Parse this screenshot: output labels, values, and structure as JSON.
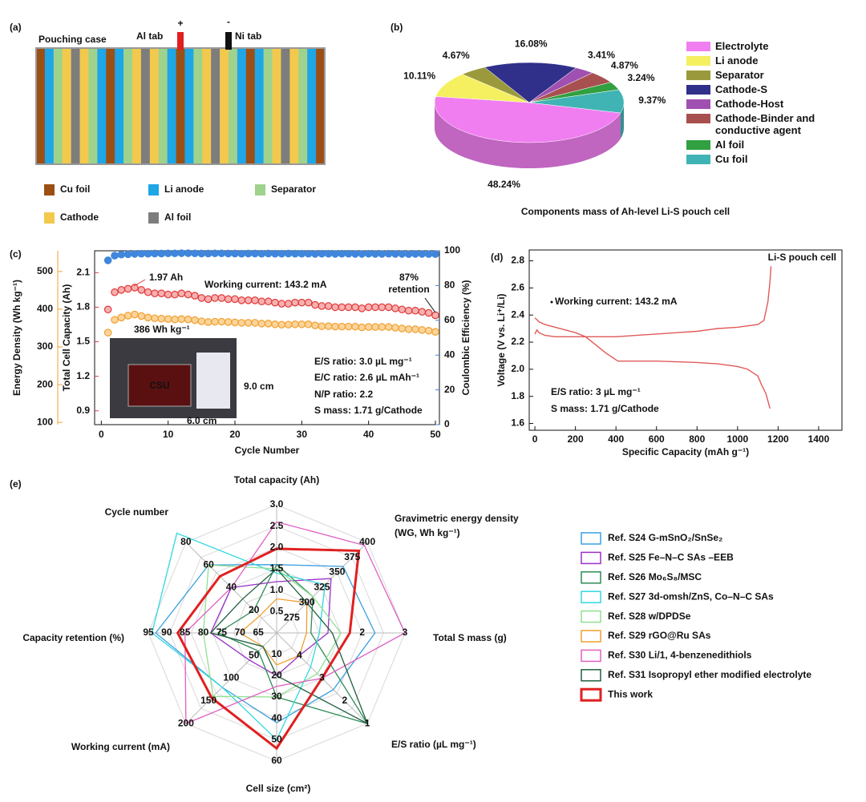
{
  "panel_a": {
    "label": "(a)",
    "case_label": "Pouching case",
    "al_tab": "Al tab",
    "al_sign": "+",
    "ni_tab": "Ni tab",
    "ni_sign": "-",
    "legend": [
      {
        "name": "Cu foil",
        "color": "#9c4f14"
      },
      {
        "name": "Li anode",
        "color": "#1ea6e6"
      },
      {
        "name": "Separator",
        "color": "#9fd28c"
      },
      {
        "name": "Cathode",
        "color": "#f2c94c"
      },
      {
        "name": "Al foil",
        "color": "#7d7d7d"
      }
    ]
  },
  "chart_data": [
    {
      "type": "pie",
      "panel_label": "(b)",
      "title": "Components mass of Ah-level Li-S pouch cell",
      "categories": [
        "Electrolyte",
        "Li anode",
        "Separator",
        "Cathode-S",
        "Cathode-Host",
        "Cathode-Binder and conductive agent",
        "Al foil",
        "Cu foil"
      ],
      "values": [
        48.24,
        10.11,
        4.67,
        16.08,
        3.41,
        4.87,
        3.24,
        9.37
      ],
      "value_labels": [
        "48.24%",
        "10.11%",
        "4.67%",
        "16.08%",
        "3.41%",
        "4.87%",
        "3.24%",
        "9.37%"
      ],
      "colors": [
        "#f07ef0",
        "#f4f060",
        "#9a9a3c",
        "#30308a",
        "#a050b0",
        "#a85050",
        "#30a040",
        "#40b4b4"
      ]
    },
    {
      "type": "scatter",
      "panel_label": "(c)",
      "xlabel": "Cycle Number",
      "x": [
        1,
        2,
        3,
        4,
        5,
        6,
        7,
        8,
        9,
        10,
        11,
        12,
        13,
        14,
        15,
        16,
        17,
        18,
        19,
        20,
        21,
        22,
        23,
        24,
        25,
        26,
        27,
        28,
        29,
        30,
        31,
        32,
        33,
        34,
        35,
        36,
        37,
        38,
        39,
        40,
        41,
        42,
        43,
        44,
        45,
        46,
        47,
        48,
        49,
        50
      ],
      "xlim": [
        -1,
        50.6
      ],
      "xticks": [
        0,
        10,
        20,
        30,
        40,
        50
      ],
      "ylabel": "Total Cell Capacity (Ah)",
      "ylim": [
        0.78,
        2.29
      ],
      "yticks": [
        0.9,
        1.2,
        1.5,
        1.8,
        2.1
      ],
      "y2label": "Coulombic Efficiency (%)",
      "y2lim": [
        0,
        100
      ],
      "y2ticks": [
        0,
        20,
        40,
        60,
        80,
        100
      ],
      "y3label": "Energy Density (Wh kg⁻¹)",
      "y3lim": [
        94,
        555
      ],
      "y3ticks": [
        100,
        200,
        300,
        400,
        500
      ],
      "series": [
        {
          "axis": "y",
          "color": "#e03a3a",
          "values": [
            1.78,
            1.93,
            1.95,
            1.96,
            1.97,
            1.95,
            1.93,
            1.92,
            1.92,
            1.91,
            1.91,
            1.92,
            1.91,
            1.9,
            1.88,
            1.87,
            1.88,
            1.88,
            1.87,
            1.87,
            1.86,
            1.86,
            1.86,
            1.85,
            1.85,
            1.84,
            1.83,
            1.83,
            1.84,
            1.84,
            1.84,
            1.82,
            1.81,
            1.81,
            1.8,
            1.8,
            1.8,
            1.8,
            1.79,
            1.8,
            1.8,
            1.8,
            1.8,
            1.79,
            1.78,
            1.77,
            1.77,
            1.76,
            1.75,
            1.73
          ]
        },
        {
          "axis": "y3",
          "color": "#f0a030",
          "values": [
            338,
            372,
            378,
            383,
            386,
            382,
            378,
            376,
            375,
            374,
            373,
            374,
            373,
            371,
            368,
            366,
            367,
            367,
            366,
            365,
            364,
            364,
            364,
            362,
            362,
            360,
            359,
            359,
            360,
            360,
            360,
            357,
            355,
            355,
            354,
            354,
            354,
            354,
            352,
            353,
            353,
            353,
            353,
            351,
            349,
            347,
            347,
            345,
            343,
            340
          ]
        },
        {
          "axis": "y2",
          "color": "#3f86dc",
          "values": [
            94.5,
            97.2,
            97.8,
            98,
            98.2,
            98.3,
            98.3,
            98.4,
            98.4,
            98.5,
            98.5,
            98.6,
            98.6,
            98.5,
            98.4,
            98.4,
            98.5,
            98.5,
            98.4,
            98.4,
            98.3,
            98.4,
            98.4,
            98.3,
            98.4,
            98.3,
            98.3,
            98.4,
            98.3,
            98.3,
            98.3,
            98.2,
            98.3,
            98.3,
            98.2,
            98.3,
            98.3,
            98.2,
            98.2,
            98.3,
            98.2,
            98.2,
            98.3,
            98.2,
            98.2,
            98.1,
            98.2,
            98.2,
            98.1,
            98.1
          ]
        }
      ],
      "annotations": [
        "1.97 Ah",
        "386 Wh kg⁻¹",
        "Working current: 143.2 mA",
        "87%",
        "retention",
        "E/S ratio: 3.0 µL mg⁻¹",
        "E/C ratio: 2.6 µL mAh⁻¹",
        "N/P ratio: 2.2",
        "S mass: 1.71 g/Cathode"
      ],
      "inset": {
        "photo_text": "CSU",
        "height": "9.0 cm",
        "width": "6.0 cm"
      }
    },
    {
      "type": "line",
      "panel_label": "(d)",
      "xlabel": "Specific Capacity (mAh g⁻¹)",
      "ylabel": "Voltage (V vs. Li⁺/Li)",
      "xlim": [
        -28,
        1515
      ],
      "xticks": [
        0,
        200,
        400,
        600,
        800,
        1000,
        1200,
        1400
      ],
      "ylim": [
        1.55,
        2.88
      ],
      "yticks": [
        1.6,
        1.8,
        {
          "value": 2,
          "label": "2.0"
        },
        2.2,
        2.4,
        2.6,
        2.8
      ],
      "series": [
        {
          "color": "#e05a5a",
          "x": [
            0,
            20,
            50,
            100,
            150,
            200,
            250,
            300,
            350,
            400,
            410,
            450,
            500,
            600,
            700,
            800,
            900,
            1000,
            1050,
            1100,
            1120,
            1140,
            1160
          ],
          "values": [
            2.38,
            2.35,
            2.33,
            2.31,
            2.29,
            2.27,
            2.24,
            2.18,
            2.12,
            2.07,
            2.06,
            2.06,
            2.06,
            2.06,
            2.055,
            2.05,
            2.04,
            2.02,
            2,
            1.95,
            1.88,
            1.82,
            1.71
          ]
        },
        {
          "color": "#e05a5a",
          "x": [
            0,
            10,
            20,
            50,
            100,
            200,
            300,
            400,
            500,
            600,
            700,
            800,
            900,
            1000,
            1050,
            1100,
            1130,
            1150,
            1160,
            1165
          ],
          "values": [
            2.26,
            2.29,
            2.27,
            2.25,
            2.24,
            2.24,
            2.24,
            2.24,
            2.25,
            2.26,
            2.27,
            2.28,
            2.3,
            2.31,
            2.32,
            2.33,
            2.36,
            2.5,
            2.65,
            2.76
          ]
        }
      ],
      "annotations": [
        "Li-S pouch cell",
        "Working current: 143.2 mA",
        "E/S ratio: 3 µL mg⁻¹",
        "S mass: 1.71 g/Cathode"
      ]
    },
    {
      "type": "radar",
      "panel_label": "(e)",
      "axes": [
        {
          "label": [
            "Total capacity (Ah)"
          ],
          "lim": [
            0,
            3
          ],
          "ticks": [
            0.5,
            {
              "value": 1,
              "label": "1.0"
            },
            1.5,
            {
              "value": 2,
              "label": "2.0"
            },
            2.5,
            {
              "value": 3,
              "label": "3.0"
            }
          ]
        },
        {
          "label": [
            "Gravimetric energy density",
            "(WG, Wh kg⁻¹)"
          ],
          "lim": [
            250,
            400
          ],
          "ticks": [
            275,
            300,
            325,
            350,
            375,
            400
          ]
        },
        {
          "label": [
            "Total S mass (g)"
          ],
          "lim": [
            0,
            3
          ],
          "ticks": [
            2,
            3
          ]
        },
        {
          "label": [
            "E/S ratio (µL mg⁻¹)"
          ],
          "lim": [
            5,
            1
          ],
          "ticks": [
            4,
            3,
            2,
            1
          ]
        },
        {
          "label": [
            "Cell size (cm²)"
          ],
          "lim": [
            0,
            60
          ],
          "ticks": [
            10,
            20,
            30,
            40,
            50,
            60
          ]
        },
        {
          "label": [
            "Working current (mA)"
          ],
          "lim": [
            0,
            200
          ],
          "ticks": [
            50,
            100,
            150,
            200
          ]
        },
        {
          "label": [
            "Capacity retention (%)"
          ],
          "lim": [
            60,
            95
          ],
          "ticks": [
            65,
            70,
            75,
            80,
            85,
            90,
            95
          ]
        },
        {
          "label": [
            "Cycle number"
          ],
          "lim": [
            0,
            80
          ],
          "ticks": [
            20,
            40,
            60,
            80
          ]
        }
      ],
      "series": [
        {
          "name": "Ref. S24  G-mSnO₂/SnSe₂",
          "color": "#3aa0e0",
          "values": [
            1.6,
            360,
            2.3,
            2.5,
            42,
            120,
            93,
            60
          ]
        },
        {
          "name": "Ref. S25  Fe–N–C SAs –EEB",
          "color": "#9b30c8",
          "values": [
            1.2,
            340,
            1.2,
            4,
            20,
            60,
            78,
            40
          ]
        },
        {
          "name": "Ref. S26  Mo₆S₈/MSC",
          "color": "#2e8b57",
          "values": [
            1.6,
            310,
            0.8,
            1,
            30,
            40,
            76,
            20
          ]
        },
        {
          "name": "Ref. S27  3d-omsh/ZnS, Co–N–C SAs",
          "color": "#30d8e0",
          "values": [
            1.4,
            330,
            1,
            3.5,
            50,
            120,
            94,
            88
          ]
        },
        {
          "name": "Ref. S28  w/DPDSe",
          "color": "#90e090",
          "values": [
            1.5,
            310,
            1.5,
            3.2,
            30,
            140,
            80,
            60
          ]
        },
        {
          "name": "Ref. S29  rGO@Ru SAs",
          "color": "#f0a030",
          "values": [
            0.8,
            300,
            0.7,
            4,
            15,
            30,
            70,
            15
          ]
        },
        {
          "name": "Ref. S30  Li/1, 4-benzenedithiols",
          "color": "#e060c0",
          "values": [
            2.6,
            395,
            3,
            3,
            25,
            200,
            85,
            40
          ]
        },
        {
          "name": "Ref. S31  Isopropyl ether modified electrolyte",
          "color": "#206040",
          "values": [
            1.5,
            300,
            1.3,
            1,
            20,
            30,
            78,
            30
          ]
        },
        {
          "name": "This work",
          "color": "#e02020",
          "values": [
            1.97,
            386,
            1.71,
            3,
            54,
            143.2,
            87,
            50
          ]
        }
      ]
    }
  ]
}
